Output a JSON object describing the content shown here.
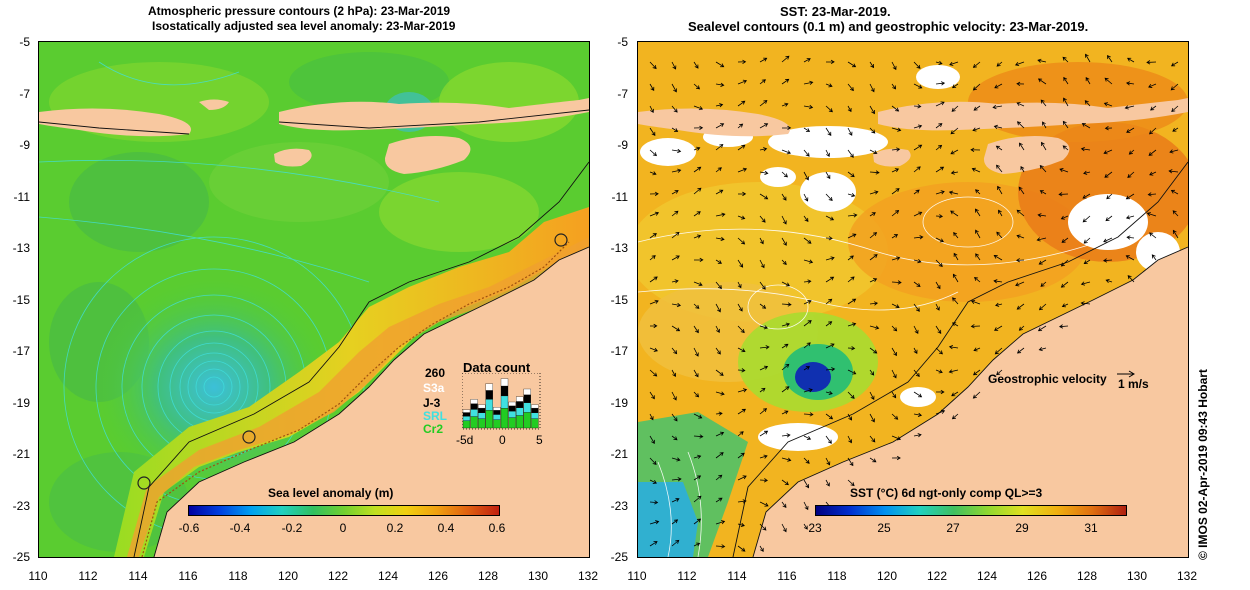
{
  "left_panel": {
    "title_line1": "Atmospheric pressure contours (2 hPa): 23-Mar-2019",
    "title_line2": "Isostatically adjusted sea level anomaly: 23-Mar-2019",
    "y_ticks": [
      "-5",
      "-7",
      "-9",
      "-11",
      "-13",
      "-15",
      "-17",
      "-19",
      "-21",
      "-23",
      "-25"
    ],
    "x_ticks": [
      "110",
      "112",
      "114",
      "116",
      "118",
      "120",
      "122",
      "124",
      "126",
      "128",
      "130",
      "132"
    ],
    "colorbar": {
      "title": "Sea level anomaly (m)",
      "labels": [
        "-0.6",
        "-0.4",
        "-0.2",
        "0",
        "0.2",
        "0.4",
        "0.6"
      ],
      "range": [
        -0.6,
        0.6
      ]
    },
    "data_count": {
      "title": "Data count",
      "max": "260",
      "missions": [
        {
          "name": "S3a",
          "color": "#ffffff"
        },
        {
          "name": "J-3",
          "color": "#000000"
        },
        {
          "name": "SRL",
          "color": "#40e0e0"
        },
        {
          "name": "Cr2",
          "color": "#22cc22"
        }
      ],
      "axis_labels": [
        "-5d",
        "0",
        "5"
      ],
      "bars": [
        0.35,
        0.55,
        0.45,
        0.85,
        0.4,
        0.95,
        0.5,
        0.6,
        0.75,
        0.45
      ]
    }
  },
  "right_panel": {
    "title_line1": "SST: 23-Mar-2019.",
    "title_line2": "Sealevel contours (0.1 m) and geostrophic velocity: 23-Mar-2019.",
    "y_ticks": [
      "-5",
      "-7",
      "-9",
      "-11",
      "-13",
      "-15",
      "-17",
      "-19",
      "-21",
      "-23",
      "-25"
    ],
    "x_ticks": [
      "110",
      "112",
      "114",
      "116",
      "118",
      "120",
      "122",
      "124",
      "126",
      "128",
      "130",
      "132"
    ],
    "colorbar": {
      "title": "SST (°C) 6d ngt-only comp QL>=3",
      "labels": [
        "23",
        "25",
        "27",
        "29",
        "31"
      ],
      "range": [
        23,
        32
      ]
    },
    "velocity_legend": {
      "label": "Geostrophic velocity",
      "scale": "1 m/s"
    }
  },
  "credit": "© IMOS 02-Apr-2019 09:43 Hobart",
  "colors": {
    "land": "#f8c8a0",
    "sla_ocean": "#55cc33",
    "sst_ocean": "#f0b020"
  }
}
